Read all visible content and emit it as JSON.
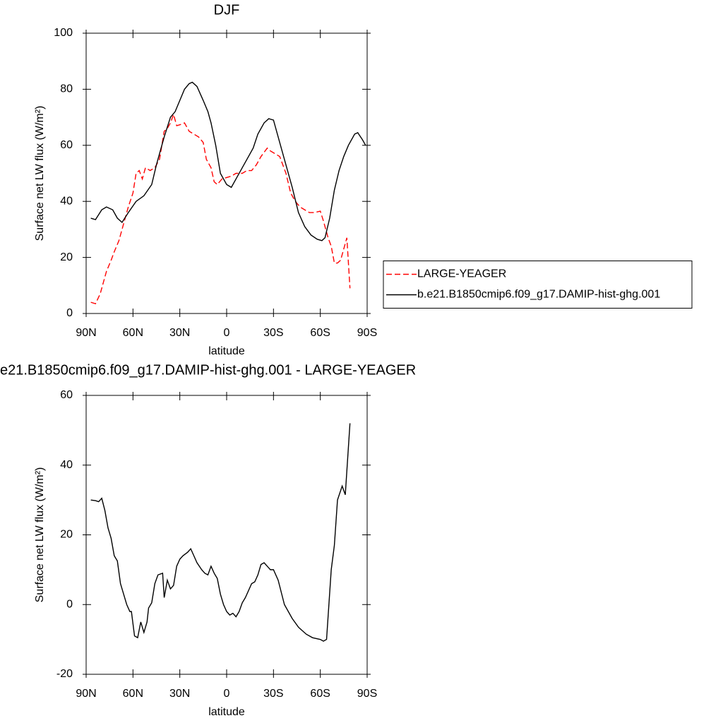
{
  "chart_data": [
    {
      "type": "line",
      "title": "DJF",
      "xlabel": "latitude",
      "ylabel": "Surface net LW flux (W/m²)",
      "xlim": [
        90,
        -90
      ],
      "ylim": [
        0,
        100
      ],
      "xticks": [
        {
          "value": 90,
          "label": "90N"
        },
        {
          "value": 60,
          "label": "60N"
        },
        {
          "value": 30,
          "label": "30N"
        },
        0,
        {
          "value": -30,
          "label": "30S"
        },
        {
          "value": -60,
          "label": "60S"
        },
        {
          "value": -90,
          "label": "90S"
        }
      ],
      "yticks": [
        0,
        20,
        40,
        60,
        80,
        100
      ],
      "legend": "right",
      "series": [
        {
          "name": "LARGE-YEAGER",
          "color": "#ff0000",
          "line_style": "dashed",
          "x": [
            87,
            84,
            81,
            77,
            74,
            72,
            69,
            66,
            63,
            60,
            58,
            56,
            54,
            52,
            49,
            46,
            43,
            40,
            38,
            36,
            34,
            32,
            29,
            27,
            24,
            21,
            18,
            15,
            13,
            10,
            8,
            6,
            3,
            0,
            -3,
            -6,
            -10,
            -13,
            -16,
            -19,
            -22,
            -26,
            -28,
            -31,
            -34,
            -38,
            -41,
            -44,
            -47,
            -50,
            -53,
            -56,
            -60,
            -62,
            -65,
            -67,
            -69,
            -71,
            -73,
            -77,
            -79
          ],
          "values": [
            4,
            3.5,
            7,
            15,
            19,
            22,
            26,
            32,
            38,
            43,
            50,
            51,
            48,
            52,
            51,
            52,
            55,
            65,
            66,
            68,
            71,
            67,
            67.5,
            68,
            65,
            64,
            63,
            61,
            55,
            52,
            47,
            46,
            48,
            48.5,
            49,
            50,
            50,
            51,
            51,
            53,
            56,
            59,
            58,
            57,
            56,
            50,
            43,
            40,
            38,
            37,
            36,
            36,
            36.5,
            33,
            27,
            24,
            18,
            18,
            19,
            27,
            9
          ]
        },
        {
          "name": "b.e21.B1850cmip6.f09_g17.DAMIP-hist-ghg.001",
          "color": "#000000",
          "line_style": "solid",
          "x": [
            87,
            84,
            80,
            77,
            73,
            70,
            67,
            63,
            58,
            53,
            48,
            45,
            40,
            36,
            33,
            30,
            27,
            24,
            22,
            19,
            15,
            12,
            10,
            7,
            4,
            0,
            -3,
            -6,
            -10,
            -14,
            -17,
            -20,
            -24,
            -27,
            -30,
            -33,
            -37,
            -42,
            -46,
            -50,
            -54,
            -58,
            -61,
            -63,
            -66,
            -69,
            -72,
            -75,
            -78,
            -82,
            -84,
            -87,
            -89
          ],
          "values": [
            34,
            33.5,
            37,
            38,
            37,
            34,
            32.5,
            36,
            40,
            42,
            46,
            53,
            63,
            70,
            72,
            76,
            80,
            82,
            82.5,
            81,
            76,
            72,
            68,
            60,
            50,
            46,
            45,
            48,
            52,
            56,
            59,
            64,
            68,
            69.5,
            69,
            63,
            55,
            45,
            36,
            31,
            28,
            26.5,
            26,
            27,
            34,
            44,
            51,
            56,
            60,
            64,
            64.5,
            62,
            60
          ]
        }
      ]
    },
    {
      "type": "line",
      "title": "e21.B1850cmip6.f09_g17.DAMIP-hist-ghg.001 - LARGE-YEAGER",
      "xlabel": "latitude",
      "ylabel": "Surface net LW flux (W/m²)",
      "xlim": [
        90,
        -90
      ],
      "ylim": [
        -20,
        60
      ],
      "xticks": [
        {
          "value": 90,
          "label": "90N"
        },
        {
          "value": 60,
          "label": "60N"
        },
        {
          "value": 30,
          "label": "30N"
        },
        0,
        {
          "value": -30,
          "label": "30S"
        },
        {
          "value": -60,
          "label": "60S"
        },
        {
          "value": -90,
          "label": "90S"
        }
      ],
      "yticks": [
        -20,
        0,
        20,
        40,
        60
      ],
      "series": [
        {
          "color": "#000000",
          "line_style": "solid",
          "x": [
            87,
            84,
            82,
            80,
            78,
            76,
            74,
            72,
            70,
            68,
            66,
            64,
            62,
            61,
            59,
            57,
            55,
            53,
            51,
            50,
            48,
            46,
            44,
            41,
            40,
            38,
            36,
            34,
            32,
            30,
            28,
            25,
            23,
            21,
            19,
            16,
            14,
            12,
            10,
            8,
            6,
            4,
            2,
            0,
            -2,
            -4,
            -6,
            -8,
            -10,
            -12,
            -14,
            -16,
            -18,
            -20,
            -22,
            -24,
            -26,
            -28,
            -30,
            -33,
            -37,
            -42,
            -46,
            -51,
            -55,
            -60,
            -62,
            -64,
            -67,
            -69,
            -71,
            -74,
            -76,
            -79
          ],
          "values": [
            30,
            29.8,
            29.5,
            30.5,
            27,
            22,
            19,
            14,
            12.5,
            6,
            3,
            0,
            -2,
            -2,
            -9,
            -9.5,
            -5,
            -8,
            -5,
            -1,
            0.5,
            6,
            8.5,
            9,
            2,
            7,
            4.5,
            5.5,
            11,
            13,
            14,
            15,
            16,
            14,
            12,
            10,
            9,
            8.5,
            11,
            9,
            7.5,
            3,
            0,
            -2,
            -3,
            -2.5,
            -3.5,
            -2,
            0.5,
            2,
            4,
            6,
            6.5,
            8.5,
            11.5,
            12,
            11,
            10,
            10,
            7,
            0,
            -4,
            -6.5,
            -8.5,
            -9.5,
            -10,
            -10.5,
            -10,
            10,
            17,
            30,
            34,
            31.5,
            52
          ]
        }
      ]
    }
  ]
}
